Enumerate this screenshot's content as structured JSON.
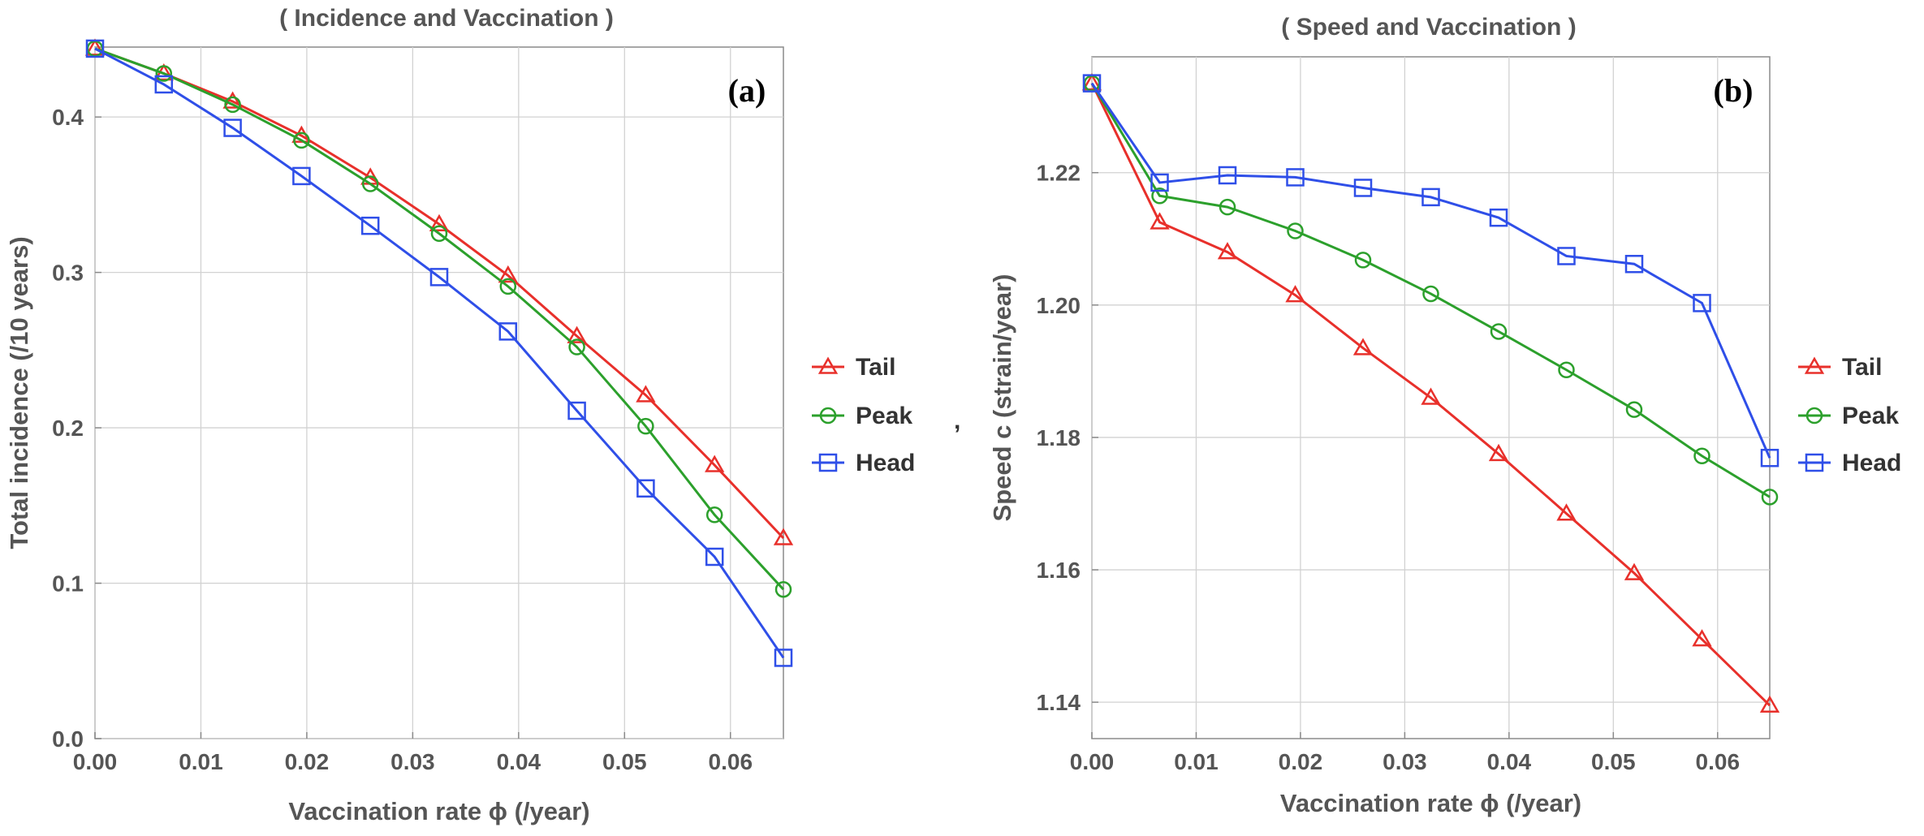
{
  "charts": [
    {
      "panel_label": "(a)",
      "chart_data": {
        "type": "line",
        "title": "( Incidence and Vaccination )",
        "xlabel": "Vaccination rate ϕ (/year)",
        "ylabel": "Total incidence (/10 years)",
        "xlim": [
          0,
          0.065
        ],
        "ylim": [
          0,
          0.445
        ],
        "xticks": [
          0.0,
          0.01,
          0.02,
          0.03,
          0.04,
          0.05,
          0.06
        ],
        "xtick_labels": [
          "0.00",
          "0.01",
          "0.02",
          "0.03",
          "0.04",
          "0.05",
          "0.06"
        ],
        "yticks": [
          0.0,
          0.1,
          0.2,
          0.3,
          0.4
        ],
        "ytick_labels": [
          "0.0",
          "0.1",
          "0.2",
          "0.3",
          "0.4"
        ],
        "grid": true,
        "legend_position": "right",
        "legend_trailing_mark": ",",
        "x": [
          0,
          0.0065,
          0.013,
          0.0195,
          0.026,
          0.0325,
          0.039,
          0.0455,
          0.052,
          0.0585,
          0.065
        ],
        "series": [
          {
            "name": "Tail",
            "color": "#e8302b",
            "marker": "triangle",
            "values": [
              0.444,
              0.428,
              0.41,
              0.388,
              0.361,
              0.331,
              0.298,
              0.259,
              0.221,
              0.176,
              0.129
            ]
          },
          {
            "name": "Peak",
            "color": "#2ca02c",
            "marker": "circle",
            "values": [
              0.444,
              0.428,
              0.408,
              0.385,
              0.357,
              0.325,
              0.291,
              0.252,
              0.201,
              0.144,
              0.096
            ]
          },
          {
            "name": "Head",
            "color": "#2f4fe8",
            "marker": "square",
            "values": [
              0.444,
              0.421,
              0.393,
              0.362,
              0.33,
              0.297,
              0.262,
              0.211,
              0.161,
              0.117,
              0.052
            ]
          }
        ]
      }
    },
    {
      "panel_label": "(b)",
      "chart_data": {
        "type": "line",
        "title": "( Speed and Vaccination )",
        "xlabel": "Vaccination rate ϕ (/year)",
        "ylabel": "Speed  c (strain/year)",
        "xlim": [
          0,
          0.065
        ],
        "ylim": [
          1.1345,
          1.2375
        ],
        "xticks": [
          0.0,
          0.01,
          0.02,
          0.03,
          0.04,
          0.05,
          0.06
        ],
        "xtick_labels": [
          "0.00",
          "0.01",
          "0.02",
          "0.03",
          "0.04",
          "0.05",
          "0.06"
        ],
        "yticks": [
          1.14,
          1.16,
          1.18,
          1.2,
          1.22
        ],
        "ytick_labels": [
          "1.14",
          "1.16",
          "1.18",
          "1.20",
          "1.22"
        ],
        "grid": true,
        "legend_position": "right",
        "legend_trailing_mark": "",
        "x": [
          0,
          0.0065,
          0.013,
          0.0195,
          0.026,
          0.0325,
          0.039,
          0.0455,
          0.052,
          0.0585,
          0.065
        ],
        "series": [
          {
            "name": "Tail",
            "color": "#e8302b",
            "marker": "triangle",
            "values": [
              1.2335,
              1.2125,
              1.208,
              1.2015,
              1.1935,
              1.186,
              1.1775,
              1.1685,
              1.1595,
              1.1495,
              1.1395
            ]
          },
          {
            "name": "Peak",
            "color": "#2ca02c",
            "marker": "circle",
            "values": [
              1.2335,
              1.2165,
              1.2148,
              1.2112,
              1.2068,
              1.2017,
              1.196,
              1.1902,
              1.1842,
              1.1772,
              1.171
            ]
          },
          {
            "name": "Head",
            "color": "#2f4fe8",
            "marker": "square",
            "values": [
              1.2335,
              1.2185,
              1.2196,
              1.2193,
              1.2177,
              1.2163,
              1.2132,
              1.2074,
              1.2062,
              1.2003,
              1.1769
            ]
          }
        ]
      }
    }
  ]
}
